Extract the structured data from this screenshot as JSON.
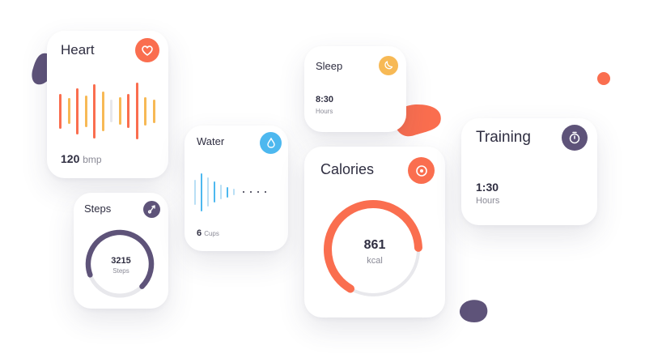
{
  "colors": {
    "orange": "#fa6e4f",
    "amber": "#f7b955",
    "purple": "#5e5379",
    "blue": "#4db8ef",
    "track": "#e8e8ec",
    "text": "#2f2e41",
    "muted": "#8a8a96"
  },
  "heart": {
    "title": "Heart",
    "icon": "heart-icon",
    "value": "120",
    "unit": "bmp",
    "waveform": [
      0.62,
      0.45,
      0.82,
      0.55,
      0.95,
      0.7,
      0.4,
      0.48,
      0.6,
      1.0,
      0.5,
      0.42
    ]
  },
  "steps": {
    "title": "Steps",
    "icon": "shoe-icon",
    "value": "3215",
    "unit": "Steps",
    "progress": 0.68
  },
  "water": {
    "title": "Water",
    "icon": "water-drop-icon",
    "value": "6",
    "unit": "Cups",
    "levels": [
      0.6,
      0.9,
      0.7,
      0.5,
      0.35,
      0.25,
      0.15
    ]
  },
  "sleep": {
    "title": "Sleep",
    "icon": "moon-icon",
    "value": "8:30",
    "unit": "Hours"
  },
  "calories": {
    "title": "Calories",
    "icon": "target-icon",
    "value": "861",
    "unit": "kcal",
    "progress": 0.66
  },
  "training": {
    "title": "Training",
    "icon": "stopwatch-icon",
    "value": "1:30",
    "unit": "Hours"
  }
}
